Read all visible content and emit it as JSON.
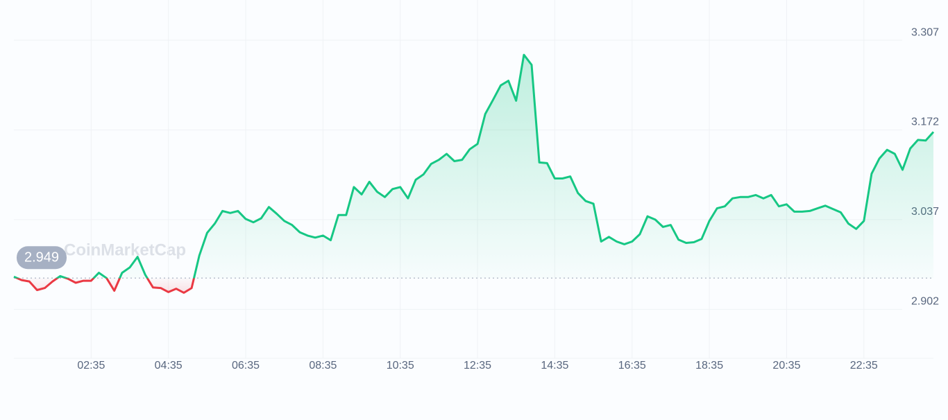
{
  "chart_data": {
    "type": "line",
    "watermark": "CoinMarketCap",
    "reference": 2.949,
    "up_color": "#16c784",
    "down_color": "#ea3943",
    "x": [
      35,
      47,
      59,
      71,
      83,
      95,
      107,
      119,
      131,
      143,
      155,
      167,
      179,
      191,
      203,
      215,
      227,
      239,
      251,
      263,
      275,
      287,
      299,
      311,
      323,
      335,
      347,
      359,
      371,
      383,
      395,
      407,
      419,
      431,
      443,
      455,
      467,
      479,
      491,
      503,
      515,
      527,
      539,
      551,
      563,
      575,
      587,
      599,
      611,
      623,
      635,
      647,
      659,
      671,
      683,
      695,
      707,
      719,
      731,
      743,
      755,
      767,
      779,
      791,
      803,
      815,
      827,
      839,
      851,
      863,
      875,
      887,
      899,
      911,
      923,
      935,
      947,
      959,
      971,
      983,
      995,
      1007,
      1019,
      1031,
      1043,
      1055,
      1067,
      1079,
      1091,
      1103,
      1115,
      1127,
      1139,
      1151,
      1163,
      1175,
      1187,
      1199,
      1211,
      1223,
      1235,
      1247,
      1259,
      1271,
      1283,
      1295,
      1307,
      1319,
      1331,
      1343,
      1355,
      1367,
      1379,
      1391,
      1403,
      1415,
      1427,
      1439,
      1451,
      1463
    ],
    "values": [
      2.951,
      2.946,
      2.944,
      2.931,
      2.934,
      2.944,
      2.952,
      2.948,
      2.942,
      2.945,
      2.945,
      2.957,
      2.949,
      2.93,
      2.957,
      2.965,
      2.981,
      2.954,
      2.935,
      2.934,
      2.928,
      2.933,
      2.927,
      2.934,
      2.983,
      3.017,
      3.031,
      3.05,
      3.047,
      3.05,
      3.038,
      3.033,
      3.039,
      3.056,
      3.046,
      3.035,
      3.029,
      3.018,
      3.013,
      3.01,
      3.013,
      3.006,
      3.044,
      3.044,
      3.086,
      3.075,
      3.094,
      3.079,
      3.071,
      3.083,
      3.086,
      3.069,
      3.097,
      3.105,
      3.121,
      3.127,
      3.136,
      3.125,
      3.127,
      3.143,
      3.151,
      3.196,
      3.217,
      3.239,
      3.246,
      3.216,
      3.285,
      3.27,
      3.123,
      3.122,
      3.099,
      3.099,
      3.102,
      3.077,
      3.065,
      3.061,
      3.004,
      3.011,
      3.004,
      3.0,
      3.004,
      3.015,
      3.042,
      3.037,
      3.026,
      3.029,
      3.007,
      3.002,
      3.003,
      3.008,
      3.035,
      3.054,
      3.057,
      3.069,
      3.071,
      3.071,
      3.074,
      3.069,
      3.074,
      3.057,
      3.06,
      3.049,
      3.049,
      3.05,
      3.054,
      3.058,
      3.053,
      3.048,
      3.031,
      3.023,
      3.035,
      3.106,
      3.129,
      3.142,
      3.136,
      3.112,
      3.144,
      3.157,
      3.156,
      3.169
    ],
    "xlim": [
      35,
      1463
    ],
    "xticks": [
      {
        "value": 155,
        "label": "02:35"
      },
      {
        "value": 275,
        "label": "04:35"
      },
      {
        "value": 395,
        "label": "06:35"
      },
      {
        "value": 515,
        "label": "08:35"
      },
      {
        "value": 635,
        "label": "10:35"
      },
      {
        "value": 755,
        "label": "12:35"
      },
      {
        "value": 875,
        "label": "14:35"
      },
      {
        "value": 995,
        "label": "16:35"
      },
      {
        "value": 1115,
        "label": "18:35"
      },
      {
        "value": 1235,
        "label": "20:35"
      },
      {
        "value": 1355,
        "label": "22:35"
      }
    ],
    "ylim": [
      2.87,
      3.33
    ],
    "yticks": [
      3.307,
      3.172,
      3.037,
      2.902
    ],
    "grid": true
  }
}
